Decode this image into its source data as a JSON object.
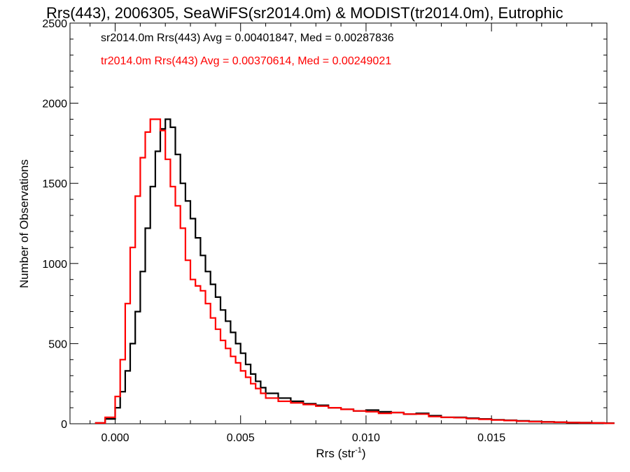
{
  "chart_data": {
    "type": "line",
    "title": "Rrs(443), 2006305, SeaWiFS(sr2014.0m) & MODIST(tr2014.0m), Eutrophic",
    "xlabel": "Rrs (str",
    "xlabel_sup": "-1",
    "xlabel_close": ")",
    "ylabel": "Number of Observations",
    "xlim": [
      -0.0018,
      0.0196
    ],
    "ylim": [
      0,
      2500
    ],
    "xticks": [
      0.0,
      0.005,
      0.01,
      0.015
    ],
    "xtick_labels": [
      "0.000",
      "0.005",
      "0.010",
      "0.015"
    ],
    "yticks": [
      0,
      500,
      1000,
      1500,
      2000,
      2500
    ],
    "ytick_labels": [
      "0",
      "500",
      "1000",
      "1500",
      "2000",
      "2500"
    ],
    "grid": false,
    "legend_position": "top-left",
    "annotations": [
      "sr2014.0m Rrs(443) Avg = 0.00401847, Med = 0.00287836",
      "tr2014.0m Rrs(443) Avg = 0.00370614, Med = 0.00249021"
    ],
    "series": [
      {
        "color": "#000000",
        "x": [
          -0.0008,
          -0.0004,
          0.0,
          0.0002,
          0.0004,
          0.0006,
          0.0008,
          0.001,
          0.0012,
          0.0014,
          0.0016,
          0.0018,
          0.002,
          0.0022,
          0.0024,
          0.0026,
          0.0028,
          0.003,
          0.0032,
          0.0034,
          0.0036,
          0.0038,
          0.004,
          0.0042,
          0.0044,
          0.0046,
          0.0048,
          0.005,
          0.0052,
          0.0054,
          0.0056,
          0.0058,
          0.006,
          0.0065,
          0.007,
          0.0075,
          0.008,
          0.0085,
          0.009,
          0.0095,
          0.01,
          0.0105,
          0.011,
          0.0115,
          0.012,
          0.0125,
          0.013,
          0.0135,
          0.014,
          0.0145,
          0.015,
          0.0155,
          0.016,
          0.0165,
          0.017,
          0.0175,
          0.018,
          0.0185,
          0.019,
          0.0195
        ],
        "y": [
          5,
          30,
          100,
          200,
          330,
          500,
          700,
          950,
          1220,
          1480,
          1700,
          1840,
          1900,
          1850,
          1680,
          1500,
          1390,
          1280,
          1160,
          1050,
          950,
          870,
          790,
          710,
          640,
          570,
          500,
          440,
          370,
          310,
          265,
          225,
          190,
          160,
          140,
          125,
          115,
          100,
          90,
          80,
          85,
          75,
          70,
          60,
          65,
          50,
          40,
          40,
          35,
          30,
          25,
          22,
          18,
          15,
          12,
          10,
          8,
          7,
          5,
          4
        ]
      },
      {
        "color": "#ff0000",
        "x": [
          -0.0008,
          -0.0004,
          0.0,
          0.0002,
          0.0004,
          0.0006,
          0.0008,
          0.001,
          0.0012,
          0.0014,
          0.0016,
          0.0018,
          0.002,
          0.0022,
          0.0024,
          0.0026,
          0.0028,
          0.003,
          0.0032,
          0.0034,
          0.0036,
          0.0038,
          0.004,
          0.0042,
          0.0044,
          0.0046,
          0.0048,
          0.005,
          0.0052,
          0.0054,
          0.0056,
          0.0058,
          0.006,
          0.0065,
          0.007,
          0.0075,
          0.008,
          0.0085,
          0.009,
          0.0095,
          0.01,
          0.0105,
          0.011,
          0.0115,
          0.012,
          0.0125,
          0.013,
          0.0135,
          0.014,
          0.0145,
          0.015,
          0.0155,
          0.016,
          0.0165,
          0.017,
          0.0175,
          0.018,
          0.0185,
          0.019,
          0.0195
        ],
        "y": [
          5,
          40,
          170,
          400,
          750,
          1100,
          1420,
          1660,
          1820,
          1900,
          1900,
          1830,
          1650,
          1480,
          1360,
          1220,
          1020,
          900,
          860,
          830,
          750,
          660,
          590,
          520,
          470,
          420,
          380,
          330,
          290,
          250,
          220,
          190,
          160,
          140,
          130,
          120,
          110,
          100,
          90,
          80,
          75,
          65,
          70,
          60,
          60,
          45,
          40,
          38,
          32,
          28,
          23,
          20,
          16,
          13,
          11,
          9,
          7,
          6,
          5,
          3
        ]
      }
    ]
  }
}
